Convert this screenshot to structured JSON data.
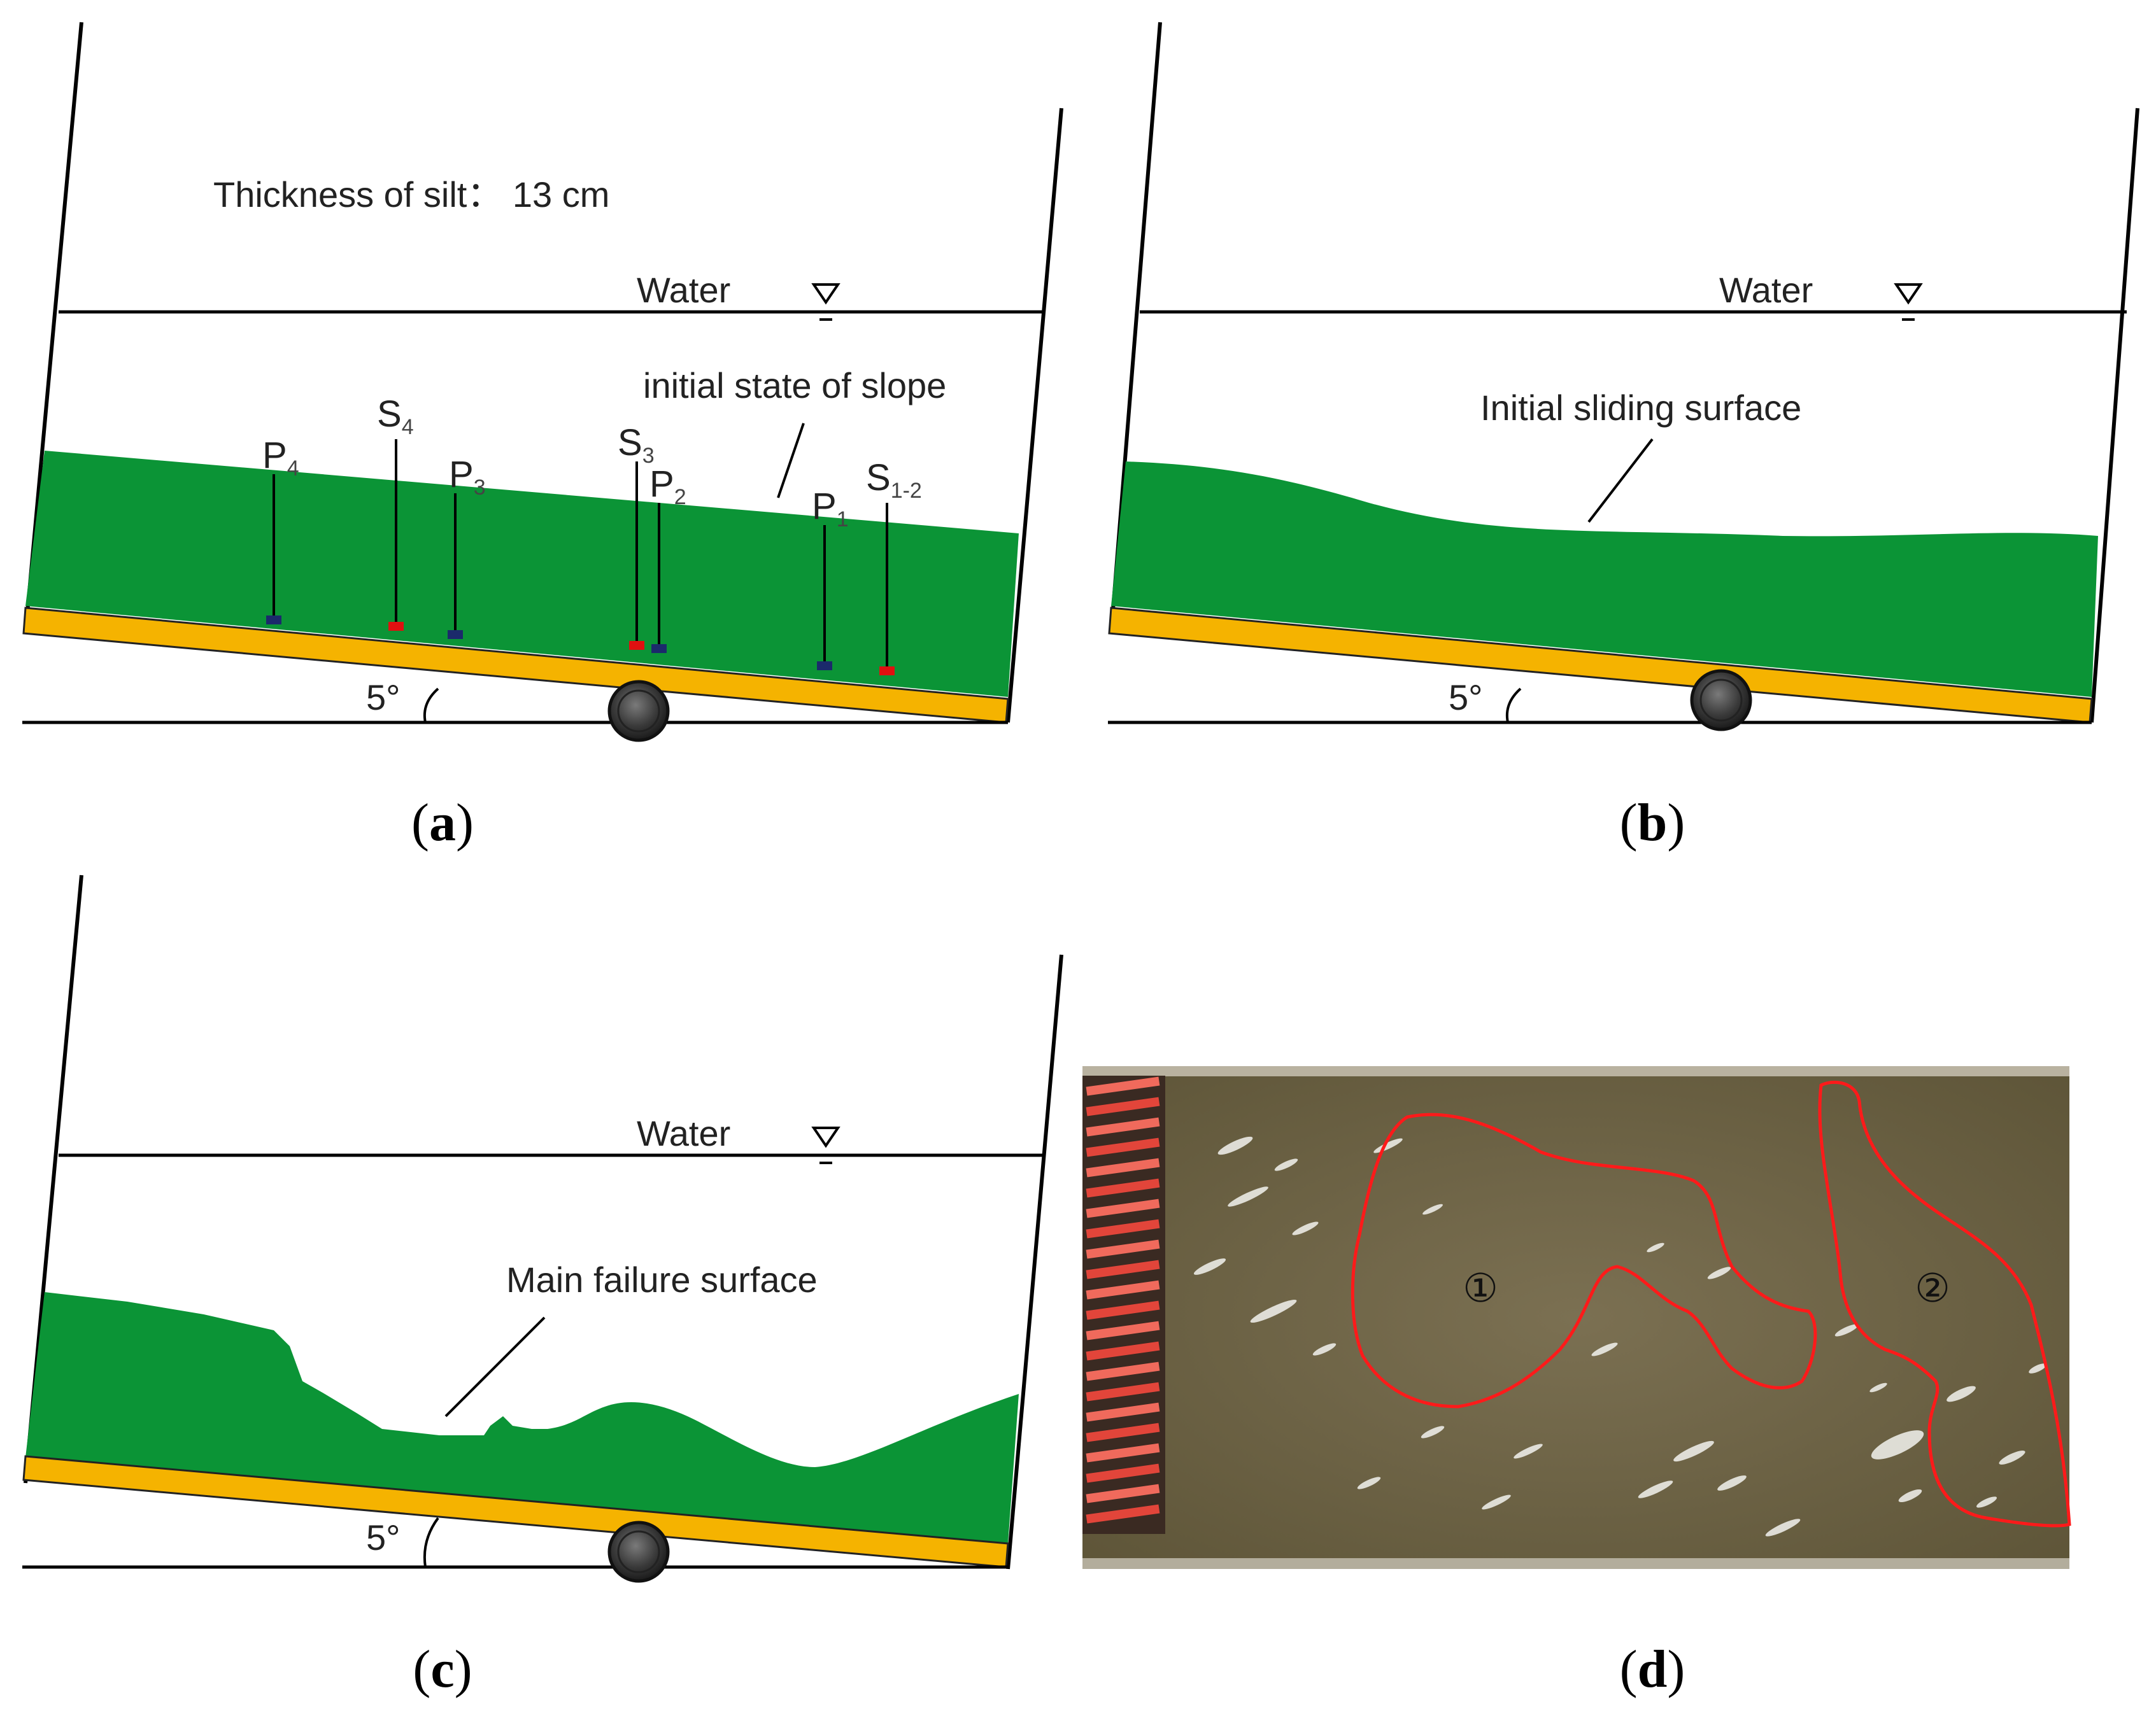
{
  "panels": {
    "a": {
      "caption_letter": "a",
      "thickness_label": "Thickness of silt： 13 cm",
      "water_label": "Water",
      "slope_label": "initial state of slope",
      "angle_label": "5°",
      "sensors": [
        {
          "base": "P",
          "sub": "4",
          "color": "#1b2a6b"
        },
        {
          "base": "S",
          "sub": "4",
          "color": "#e01010"
        },
        {
          "base": "P",
          "sub": "3",
          "color": "#1b2a6b"
        },
        {
          "base": "S",
          "sub": "3",
          "color": "#e01010"
        },
        {
          "base": "P",
          "sub": "2",
          "color": "#1b2a6b"
        },
        {
          "base": "P",
          "sub": "1",
          "color": "#1b2a6b"
        },
        {
          "base": "S",
          "sub": "1-2",
          "color": "#e01010"
        }
      ]
    },
    "b": {
      "caption_letter": "b",
      "water_label": "Water",
      "surface_label": "Initial sliding surface",
      "angle_label": "5°"
    },
    "c": {
      "caption_letter": "c",
      "water_label": "Water",
      "surface_label": "Main failure surface",
      "angle_label": "5°"
    },
    "d": {
      "caption_letter": "d",
      "zone_labels": [
        "①",
        "②"
      ]
    }
  },
  "colors": {
    "silt": "#0b9436",
    "base_plate": "#f5b300",
    "photo_water": "#6f6547",
    "failure_outline": "#ff1a1a"
  }
}
